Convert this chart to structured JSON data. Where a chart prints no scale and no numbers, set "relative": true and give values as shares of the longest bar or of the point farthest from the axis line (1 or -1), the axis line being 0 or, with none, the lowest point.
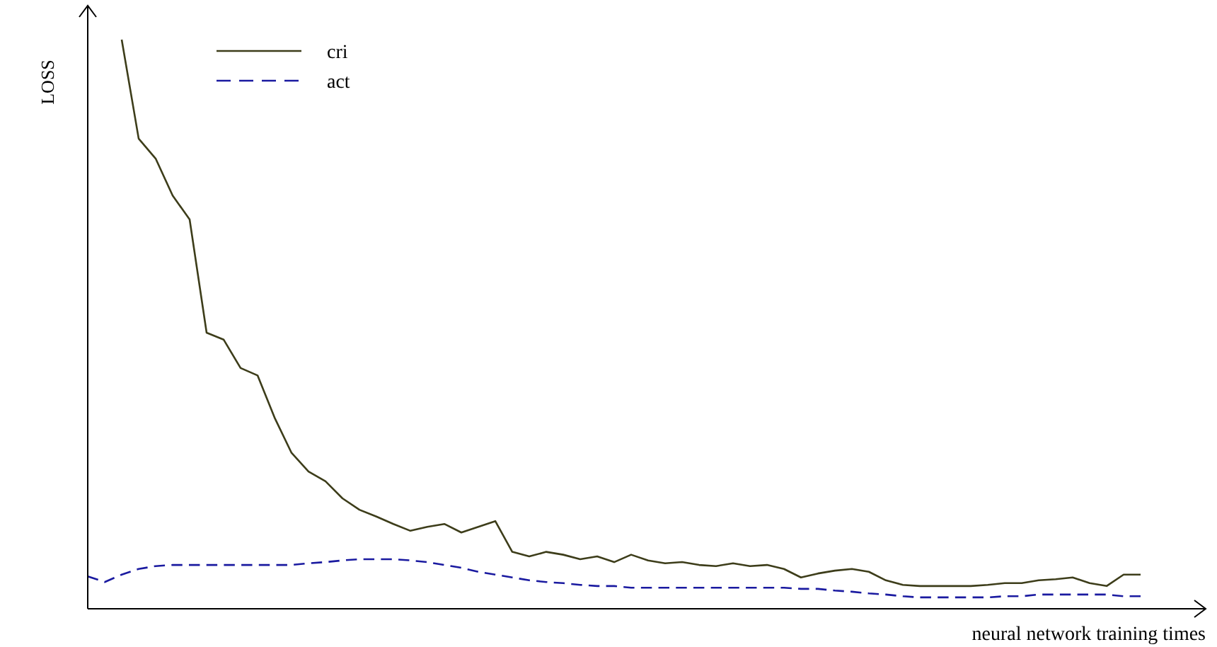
{
  "chart_data": {
    "type": "line",
    "relative": true,
    "xlabel": "neural network training times",
    "ylabel": "LOSS",
    "legend": "top left",
    "categories": [
      null,
      null,
      null,
      null,
      null,
      null,
      null,
      null,
      null,
      null,
      null,
      null,
      null,
      null,
      null,
      null,
      null,
      null,
      null,
      null,
      null,
      null,
      null,
      null,
      null,
      null,
      null,
      null,
      null,
      null,
      null,
      null,
      null,
      null,
      null,
      null,
      null,
      null,
      null,
      null,
      null,
      null,
      null,
      null,
      null,
      null,
      null,
      null,
      null,
      null,
      null,
      null,
      null,
      null,
      null,
      null,
      null,
      null,
      null,
      null,
      null,
      null,
      null
    ],
    "series": [
      {
        "name": "cri",
        "color": "#3d3d1a",
        "line_style": "solid",
        "values": [
          null,
          null,
          1,
          0.826,
          0.791,
          0.726,
          0.684,
          0.485,
          0.473,
          0.423,
          0.41,
          0.336,
          0.274,
          0.241,
          0.224,
          0.194,
          0.174,
          0.162,
          0.149,
          0.137,
          0.144,
          0.149,
          0.134,
          0.144,
          0.154,
          0.1,
          0.092,
          0.1,
          0.095,
          0.087,
          0.092,
          0.082,
          0.095,
          0.085,
          0.08,
          0.082,
          0.077,
          0.075,
          0.08,
          0.075,
          0.077,
          0.07,
          0.055,
          0.062,
          0.067,
          0.07,
          0.065,
          0.05,
          0.042,
          0.04,
          0.04,
          0.04,
          0.04,
          0.042,
          0.045,
          0.045,
          0.05,
          0.052,
          0.055,
          0.045,
          0.04,
          0.06,
          0.06
        ]
      },
      {
        "name": "act",
        "color": "#1a1aa0",
        "line_style": "dashed",
        "values": [
          0.057,
          0.047,
          0.06,
          0.07,
          0.075,
          0.077,
          0.077,
          0.077,
          0.077,
          0.077,
          0.077,
          0.077,
          0.077,
          0.08,
          0.082,
          0.085,
          0.087,
          0.087,
          0.087,
          0.085,
          0.082,
          0.077,
          0.072,
          0.065,
          0.06,
          0.055,
          0.05,
          0.047,
          0.045,
          0.042,
          0.04,
          0.04,
          0.037,
          0.037,
          0.037,
          0.037,
          0.037,
          0.037,
          0.037,
          0.037,
          0.037,
          0.037,
          0.035,
          0.035,
          0.032,
          0.03,
          0.027,
          0.025,
          0.022,
          0.02,
          0.02,
          0.02,
          0.02,
          0.02,
          0.022,
          0.022,
          0.025,
          0.025,
          0.025,
          0.025,
          0.025,
          0.022,
          0.022
        ]
      }
    ]
  }
}
